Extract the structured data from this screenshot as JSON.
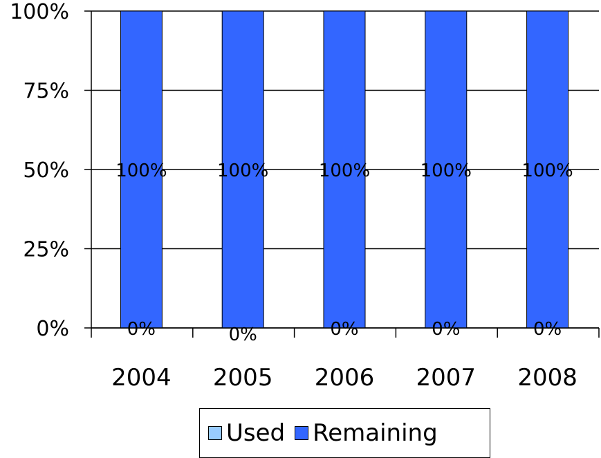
{
  "chart_data": {
    "type": "bar",
    "stacked": true,
    "percent": true,
    "categories": [
      "2004",
      "2005",
      "2006",
      "2007",
      "2008"
    ],
    "series": [
      {
        "name": "Used",
        "values": [
          0,
          0,
          0,
          0,
          0
        ],
        "labels": [
          "0%",
          "0%",
          "0%",
          "0%",
          "0%"
        ],
        "color": "#99ccff"
      },
      {
        "name": "Remaining",
        "values": [
          100,
          100,
          100,
          100,
          100
        ],
        "labels": [
          "100%",
          "100%",
          "100%",
          "100%",
          "100%"
        ],
        "color": "#3366ff"
      }
    ],
    "ylim": [
      0,
      100
    ],
    "yticks": [
      "0%",
      "25%",
      "50%",
      "75%",
      "100%"
    ],
    "ytick_values": [
      0,
      25,
      50,
      75,
      100
    ],
    "grid": true,
    "legend_position": "bottom"
  }
}
